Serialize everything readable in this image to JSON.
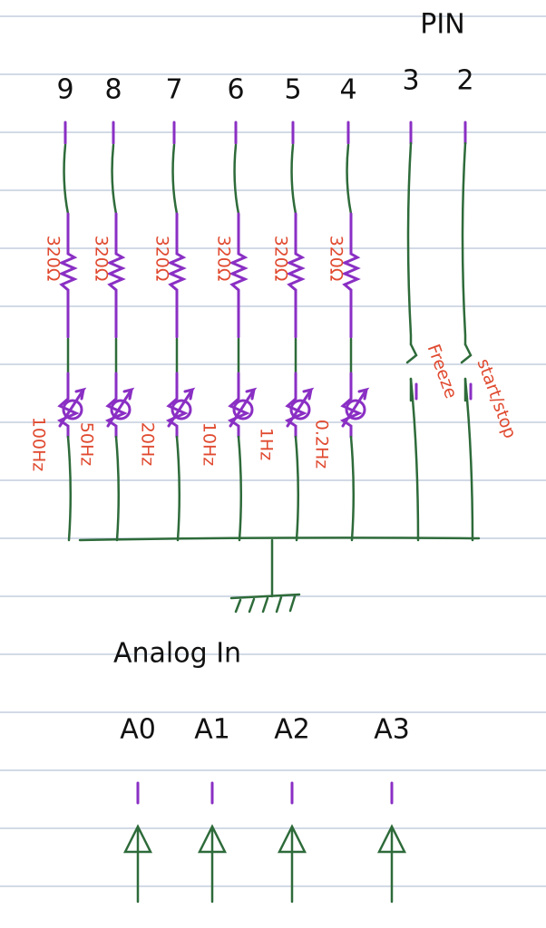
{
  "header": {
    "title": "PIN"
  },
  "pins": [
    {
      "label": "9",
      "resistor": "320Ω",
      "frequency": "100Hz"
    },
    {
      "label": "8",
      "resistor": "320Ω",
      "frequency": "50Hz"
    },
    {
      "label": "7",
      "resistor": "320Ω",
      "frequency": "20Hz"
    },
    {
      "label": "6",
      "resistor": "320Ω",
      "frequency": "10Hz"
    },
    {
      "label": "5",
      "resistor": "320Ω",
      "frequency": "1Hz"
    },
    {
      "label": "4",
      "resistor": "320Ω",
      "frequency": "0.2Hz"
    },
    {
      "label": "3",
      "switch": "Freeze"
    },
    {
      "label": "2",
      "switch": "start/stop"
    }
  ],
  "analog": {
    "title": "Analog In",
    "inputs": [
      "A0",
      "A1",
      "A2",
      "A3"
    ]
  }
}
